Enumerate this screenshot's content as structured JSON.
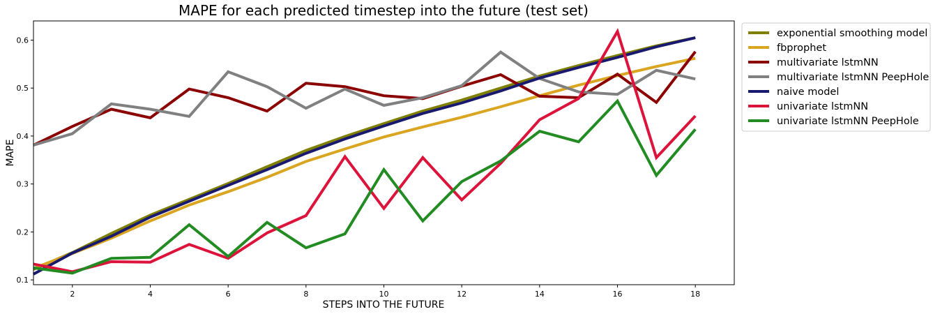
{
  "chart_data": {
    "type": "line",
    "title": "MAPE for each predicted timestep into the future (test set)",
    "xlabel": "STEPS INTO THE FUTURE",
    "ylabel": "MAPE",
    "xlim": [
      1,
      19
    ],
    "ylim": [
      0.09,
      0.64
    ],
    "xticks": [
      2,
      4,
      6,
      8,
      10,
      12,
      14,
      16,
      18
    ],
    "yticks": [
      0.1,
      0.2,
      0.3,
      0.4,
      0.5,
      0.6
    ],
    "grid": false,
    "legend_position": "outside-top-right",
    "x": [
      1,
      2,
      3,
      4,
      5,
      6,
      7,
      8,
      9,
      10,
      11,
      12,
      13,
      14,
      15,
      16,
      17,
      18
    ],
    "series": [
      {
        "name": "exponential smoothing model",
        "color": "#808000",
        "values": [
          0.122,
          0.157,
          0.197,
          0.235,
          0.268,
          0.301,
          0.336,
          0.37,
          0.399,
          0.426,
          0.452,
          0.475,
          0.5,
          0.525,
          0.547,
          0.568,
          0.588,
          0.605
        ]
      },
      {
        "name": "fbprophet",
        "color": "#DAA520",
        "values": [
          0.124,
          0.155,
          0.187,
          0.223,
          0.256,
          0.284,
          0.314,
          0.347,
          0.373,
          0.398,
          0.419,
          0.439,
          0.461,
          0.484,
          0.506,
          0.526,
          0.545,
          0.562
        ]
      },
      {
        "name": "multivariate lstmNN",
        "color": "#8B0000",
        "values": [
          0.381,
          0.42,
          0.456,
          0.438,
          0.498,
          0.48,
          0.452,
          0.51,
          0.503,
          0.484,
          0.478,
          0.504,
          0.528,
          0.483,
          0.48,
          0.529,
          0.47,
          0.576
        ]
      },
      {
        "name": "multivariate lstmNN PeepHole",
        "color": "#808080",
        "values": [
          0.381,
          0.405,
          0.467,
          0.456,
          0.441,
          0.534,
          0.503,
          0.458,
          0.498,
          0.464,
          0.48,
          0.505,
          0.575,
          0.52,
          0.492,
          0.487,
          0.537,
          0.519
        ]
      },
      {
        "name": "naive model",
        "color": "#191970",
        "values": [
          0.112,
          0.156,
          0.191,
          0.231,
          0.264,
          0.297,
          0.33,
          0.364,
          0.394,
          0.421,
          0.447,
          0.469,
          0.494,
          0.521,
          0.543,
          0.564,
          0.586,
          0.605
        ]
      },
      {
        "name": "univariate lstmNN",
        "color": "#DC143C",
        "values": [
          0.133,
          0.117,
          0.138,
          0.137,
          0.174,
          0.145,
          0.198,
          0.234,
          0.357,
          0.249,
          0.355,
          0.267,
          0.343,
          0.434,
          0.478,
          0.618,
          0.355,
          0.442
        ]
      },
      {
        "name": "univariate lstmNN PeepHole",
        "color": "#228B22",
        "values": [
          0.125,
          0.114,
          0.145,
          0.147,
          0.215,
          0.149,
          0.22,
          0.167,
          0.196,
          0.33,
          0.223,
          0.305,
          0.348,
          0.41,
          0.388,
          0.473,
          0.318,
          0.414
        ]
      }
    ]
  }
}
